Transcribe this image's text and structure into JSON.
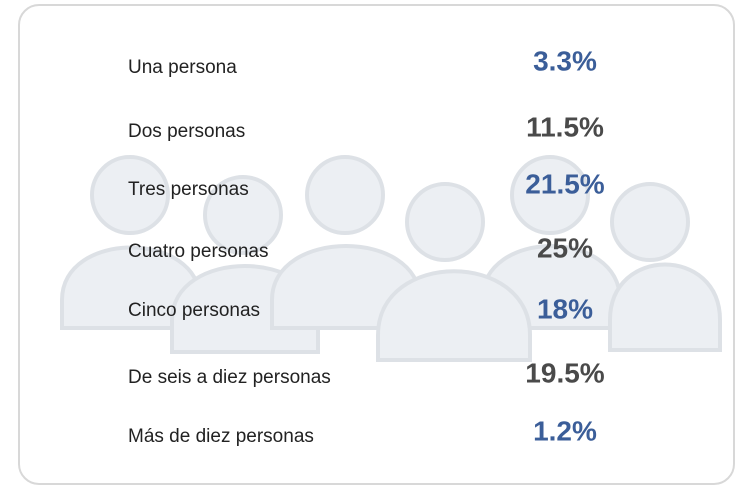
{
  "table": {
    "rows": [
      {
        "label": "Una persona",
        "value": "3.3%",
        "color": "#3b5e99"
      },
      {
        "label": "Dos personas",
        "value": "11.5%",
        "color": "#4a4a4a"
      },
      {
        "label": "Tres personas",
        "value": "21.5%",
        "color": "#3b5e99"
      },
      {
        "label": "Cuatro personas",
        "value": "25%",
        "color": "#4a4a4a"
      },
      {
        "label": "Cinco personas",
        "value": "18%",
        "color": "#3b5e99"
      },
      {
        "label": "De seis a diez personas",
        "value": "19.5%",
        "color": "#4a4a4a"
      },
      {
        "label": "Más de diez personas",
        "value": "1.2%",
        "color": "#3b5e99"
      }
    ]
  }
}
